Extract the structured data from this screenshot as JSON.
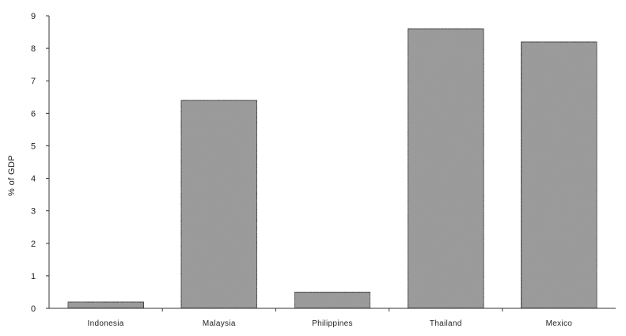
{
  "chart_data": {
    "type": "bar",
    "title": "",
    "xlabel": "",
    "ylabel": "% of GDP",
    "categories": [
      "Indonesia",
      "Malaysia",
      "Philippines",
      "Thailand",
      "Mexico"
    ],
    "values": [
      0.2,
      6.4,
      0.5,
      8.6,
      8.2
    ],
    "ylim": [
      0,
      9
    ],
    "yticks": [
      "0",
      "1",
      "2",
      "3",
      "4",
      "5",
      "6",
      "7",
      "8",
      "9"
    ],
    "grid": false,
    "legend": "none",
    "colors": {
      "bar_fill": "#9a9a9a",
      "bar_stroke": "#333333",
      "axis": "#333333"
    }
  }
}
